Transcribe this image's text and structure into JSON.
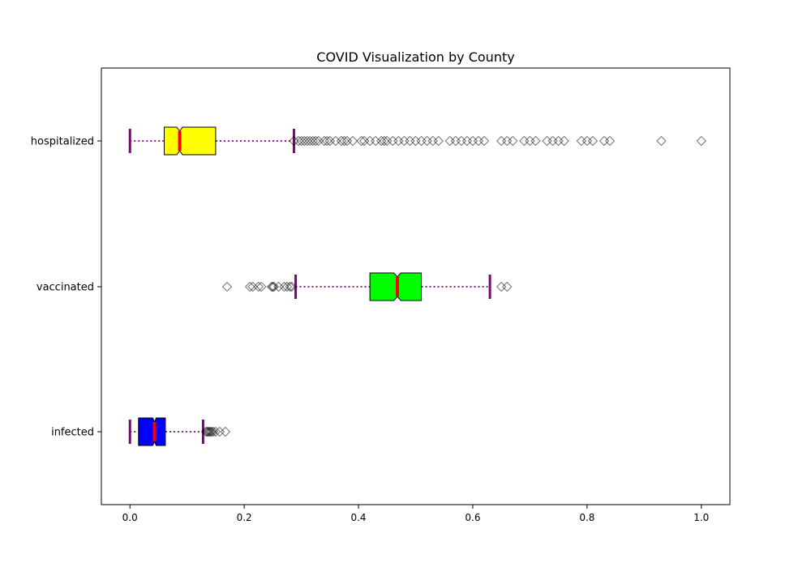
{
  "chart_data": {
    "type": "boxplot",
    "orientation": "horizontal",
    "title": "COVID Visualization by County",
    "xlabel": "",
    "ylabel": "",
    "xlim": [
      -0.05,
      1.05
    ],
    "xticks": [
      0.0,
      0.2,
      0.4,
      0.6,
      0.8,
      1.0
    ],
    "xtick_labels": [
      "0.0",
      "0.2",
      "0.4",
      "0.6",
      "0.8",
      "1.0"
    ],
    "grid": false,
    "notched": true,
    "whisker_style": "dotted",
    "colors": {
      "whisker": "#800080",
      "median": "#ff0000",
      "flier": "#000000"
    },
    "categories": [
      "infected",
      "vaccinated",
      "hospitalized"
    ],
    "series": [
      {
        "category": "infected",
        "color": "#0000ff",
        "whisker_low": 0.0,
        "q1": 0.015,
        "median": 0.043,
        "q3": 0.062,
        "whisker_high": 0.128,
        "notch_low": 0.04,
        "notch_high": 0.046,
        "fliers": [
          0.133,
          0.135,
          0.137,
          0.139,
          0.141,
          0.143,
          0.146,
          0.15,
          0.157,
          0.167
        ]
      },
      {
        "category": "vaccinated",
        "color": "#00ff00",
        "whisker_low": 0.29,
        "q1": 0.42,
        "median": 0.468,
        "q3": 0.51,
        "whisker_high": 0.63,
        "notch_low": 0.462,
        "notch_high": 0.474,
        "fliers": [
          0.17,
          0.21,
          0.215,
          0.225,
          0.23,
          0.248,
          0.25,
          0.252,
          0.26,
          0.27,
          0.275,
          0.28,
          0.283,
          0.65,
          0.66
        ]
      },
      {
        "category": "hospitalized",
        "color": "#ffff00",
        "whisker_low": 0.0,
        "q1": 0.06,
        "median": 0.087,
        "q3": 0.15,
        "whisker_high": 0.287,
        "notch_low": 0.082,
        "notch_high": 0.092,
        "fliers": [
          0.287,
          0.295,
          0.3,
          0.305,
          0.31,
          0.315,
          0.32,
          0.325,
          0.33,
          0.34,
          0.345,
          0.35,
          0.36,
          0.37,
          0.375,
          0.38,
          0.39,
          0.405,
          0.41,
          0.42,
          0.43,
          0.44,
          0.445,
          0.45,
          0.46,
          0.47,
          0.48,
          0.49,
          0.5,
          0.51,
          0.52,
          0.53,
          0.54,
          0.56,
          0.57,
          0.58,
          0.59,
          0.6,
          0.61,
          0.62,
          0.65,
          0.66,
          0.67,
          0.69,
          0.7,
          0.71,
          0.73,
          0.74,
          0.75,
          0.76,
          0.79,
          0.8,
          0.81,
          0.83,
          0.84,
          0.93,
          1.0
        ]
      }
    ]
  }
}
